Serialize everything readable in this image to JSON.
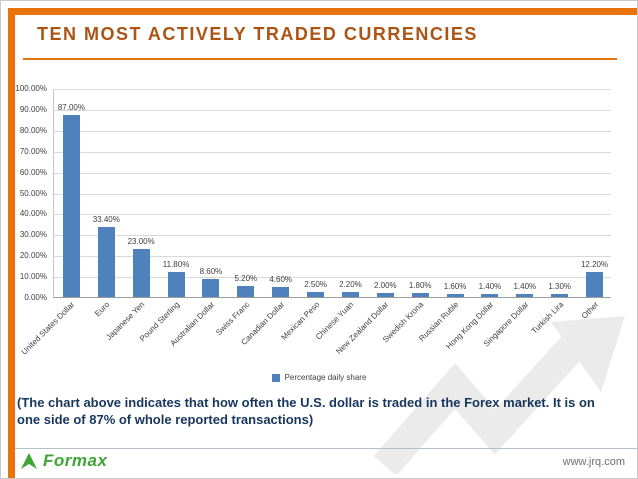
{
  "slide": {
    "title": "TEN MOST ACTIVELY TRADED CURRENCIES",
    "caption": {
      "line1": "(The chart above indicates that how often the U.S. dollar is traded in the Forex market. It is on",
      "line2": "one side of  87% of whole reported transactions)"
    },
    "footer": {
      "logo_text": "Formax",
      "url": "www.jrq.com"
    }
  },
  "chart_data": {
    "type": "bar",
    "title": "TEN MOST ACTIVELY TRADED CURRENCIES",
    "categories": [
      "United States Dollar",
      "Euro",
      "Japanese Yen",
      "Pound Sterling",
      "Australian Dollar",
      "Swiss Franc",
      "Canadian Dollar",
      "Mexican Peso",
      "Chinese Yuan",
      "New Zealand Dollar",
      "Swedish Krona",
      "Russian Ruble",
      "Hong Kong Dollar",
      "Singapore Dollar",
      "Turkish Lira",
      "Other"
    ],
    "values": [
      87.0,
      33.4,
      23.0,
      11.8,
      8.6,
      5.2,
      4.6,
      2.5,
      2.2,
      2.0,
      1.8,
      1.6,
      1.4,
      1.4,
      1.3,
      12.2
    ],
    "data_labels": [
      "87.00%",
      "33.40%",
      "23.00%",
      "11.80%",
      "8.60%",
      "5.20%",
      "4.60%",
      "2.50%",
      "2.20%",
      "2.00%",
      "1.80%",
      "1.60%",
      "1.40%",
      "1.40%",
      "1.30%",
      "12.20%"
    ],
    "y_tick_labels": [
      "100.00%",
      "90.00%",
      "80.00%",
      "70.00%",
      "60.00%",
      "50.00%",
      "40.00%",
      "30.00%",
      "20.00%",
      "10.00%",
      "0.00%"
    ],
    "xlabel": "",
    "ylabel": "",
    "ylim": [
      0,
      100
    ],
    "grid": true,
    "legend": "Percentage daily share",
    "legend_position": "bottom",
    "bar_color": "#4F81BD"
  },
  "colors": {
    "accent_orange": "#E8730A",
    "title_color": "#AC5414",
    "caption_color": "#17365D",
    "bar_color": "#4F81BD",
    "logo_green": "#3FA535",
    "gridline": "#D9D9D9"
  }
}
